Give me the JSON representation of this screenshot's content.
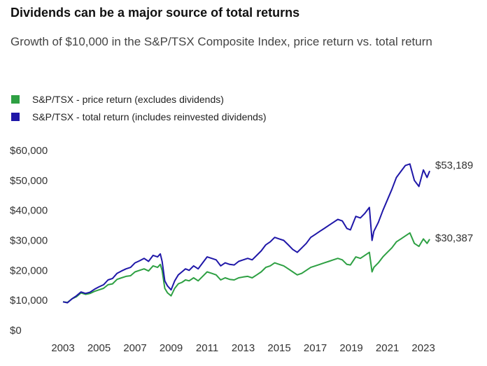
{
  "title": "Dividends can be a major source of total returns",
  "subtitle": "Growth of $10,000 in the S&P/TSX Composite Index, price return vs. total return",
  "legend": [
    {
      "label": "S&P/TSX - price return (excludes dividends)",
      "color": "#2ea043"
    },
    {
      "label": "S&P/TSX - total return (includes reinvested dividends)",
      "color": "#1f17a8"
    }
  ],
  "end_labels": {
    "total": "$53,189",
    "price": "$30,387"
  },
  "chart_data": {
    "type": "line",
    "title": "Dividends can be a major source of total returns",
    "subtitle": "Growth of $10,000 in the S&P/TSX Composite Index, price return vs. total return",
    "xlabel": "",
    "ylabel": "",
    "xlim": [
      2003,
      2023.5
    ],
    "ylim": [
      0,
      60000
    ],
    "x_ticks": [
      2003,
      2005,
      2007,
      2009,
      2011,
      2013,
      2015,
      2017,
      2019,
      2021,
      2023
    ],
    "x_tick_labels": [
      "2003",
      "2005",
      "2007",
      "2009",
      "2011",
      "2013",
      "2015",
      "2017",
      "2019",
      "2021",
      "2023"
    ],
    "y_ticks": [
      0,
      10000,
      20000,
      30000,
      40000,
      50000,
      60000
    ],
    "y_tick_labels": [
      "$0",
      "$10,000",
      "$20,000",
      "$30,000",
      "$40,000",
      "$50,000",
      "$60,000"
    ],
    "grid": false,
    "legend_position": "top-left",
    "series": [
      {
        "name": "S&P/TSX - price return (excludes dividends)",
        "color": "#2ea043",
        "x": [
          2003.0,
          2003.25,
          2003.5,
          2003.75,
          2004.0,
          2004.25,
          2004.5,
          2004.75,
          2005.0,
          2005.25,
          2005.5,
          2005.75,
          2006.0,
          2006.25,
          2006.5,
          2006.75,
          2007.0,
          2007.25,
          2007.5,
          2007.75,
          2008.0,
          2008.25,
          2008.4,
          2008.5,
          2008.65,
          2008.8,
          2009.0,
          2009.2,
          2009.4,
          2009.6,
          2009.8,
          2010.0,
          2010.25,
          2010.5,
          2010.75,
          2011.0,
          2011.25,
          2011.5,
          2011.75,
          2012.0,
          2012.25,
          2012.5,
          2012.75,
          2013.0,
          2013.25,
          2013.5,
          2013.75,
          2014.0,
          2014.25,
          2014.5,
          2014.75,
          2015.0,
          2015.25,
          2015.5,
          2015.75,
          2016.0,
          2016.25,
          2016.5,
          2016.75,
          2017.0,
          2017.25,
          2017.5,
          2017.75,
          2018.0,
          2018.25,
          2018.5,
          2018.75,
          2018.95,
          2019.25,
          2019.5,
          2019.75,
          2020.0,
          2020.15,
          2020.25,
          2020.5,
          2020.75,
          2021.0,
          2021.25,
          2021.5,
          2021.75,
          2022.0,
          2022.25,
          2022.5,
          2022.75,
          2023.0,
          2023.2,
          2023.35
        ],
        "values": [
          9500,
          9300,
          10500,
          11200,
          12500,
          12000,
          12300,
          13000,
          13500,
          14000,
          15200,
          15500,
          17000,
          17500,
          18000,
          18200,
          19500,
          20000,
          20500,
          19800,
          21500,
          21000,
          22000,
          20000,
          14000,
          12500,
          11500,
          14000,
          15500,
          16000,
          16800,
          16500,
          17500,
          16500,
          18000,
          19500,
          19000,
          18500,
          16800,
          17500,
          17000,
          16800,
          17500,
          17800,
          18000,
          17500,
          18500,
          19500,
          21000,
          21500,
          22500,
          22000,
          21500,
          20500,
          19500,
          18500,
          19000,
          20000,
          21000,
          21500,
          22000,
          22500,
          23000,
          23500,
          24000,
          23500,
          22000,
          21800,
          24500,
          24000,
          25000,
          26000,
          19500,
          21000,
          22500,
          24500,
          26000,
          27500,
          29500,
          30500,
          31500,
          32500,
          29000,
          28000,
          30500,
          29000,
          30387
        ]
      },
      {
        "name": "S&P/TSX - total return (includes reinvested dividends)",
        "color": "#1f17a8",
        "x": [
          2003.0,
          2003.25,
          2003.5,
          2003.75,
          2004.0,
          2004.25,
          2004.5,
          2004.75,
          2005.0,
          2005.25,
          2005.5,
          2005.75,
          2006.0,
          2006.25,
          2006.5,
          2006.75,
          2007.0,
          2007.25,
          2007.5,
          2007.75,
          2008.0,
          2008.25,
          2008.4,
          2008.5,
          2008.65,
          2008.8,
          2009.0,
          2009.2,
          2009.4,
          2009.6,
          2009.8,
          2010.0,
          2010.25,
          2010.5,
          2010.75,
          2011.0,
          2011.25,
          2011.5,
          2011.75,
          2012.0,
          2012.25,
          2012.5,
          2012.75,
          2013.0,
          2013.25,
          2013.5,
          2013.75,
          2014.0,
          2014.25,
          2014.5,
          2014.75,
          2015.0,
          2015.25,
          2015.5,
          2015.75,
          2016.0,
          2016.25,
          2016.5,
          2016.75,
          2017.0,
          2017.25,
          2017.5,
          2017.75,
          2018.0,
          2018.25,
          2018.5,
          2018.75,
          2018.95,
          2019.25,
          2019.5,
          2019.75,
          2020.0,
          2020.15,
          2020.25,
          2020.5,
          2020.75,
          2021.0,
          2021.25,
          2021.5,
          2021.75,
          2022.0,
          2022.25,
          2022.5,
          2022.75,
          2023.0,
          2023.2,
          2023.35
        ],
        "values": [
          9500,
          9200,
          10500,
          11500,
          12800,
          12300,
          12700,
          13700,
          14500,
          15200,
          16800,
          17300,
          19000,
          19800,
          20500,
          21000,
          22500,
          23200,
          24000,
          23000,
          25000,
          24500,
          25500,
          23000,
          16500,
          14800,
          13500,
          16500,
          18500,
          19500,
          20500,
          20000,
          21500,
          20500,
          22500,
          24500,
          24000,
          23500,
          21500,
          22500,
          22000,
          21800,
          23000,
          23500,
          24000,
          23500,
          25000,
          26500,
          28500,
          29500,
          31000,
          30500,
          30000,
          28500,
          27000,
          26000,
          27500,
          29000,
          31000,
          32000,
          33000,
          34000,
          35000,
          36000,
          37000,
          36500,
          34000,
          33500,
          38000,
          37500,
          39000,
          41000,
          30000,
          33000,
          36000,
          40000,
          43500,
          47000,
          51000,
          53000,
          55000,
          55500,
          50000,
          48000,
          53500,
          51000,
          53189
        ]
      }
    ]
  }
}
